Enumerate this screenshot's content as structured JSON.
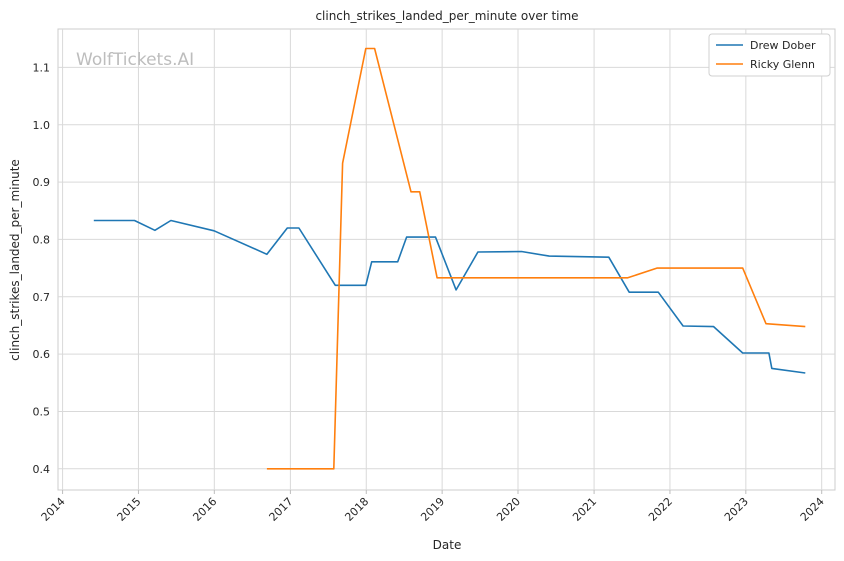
{
  "chart_data": {
    "type": "line",
    "title": "clinch_strikes_landed_per_minute over time",
    "xlabel": "Date",
    "ylabel": "clinch_strikes_landed_per_minute",
    "watermark": "WolfTickets.AI",
    "x_ticks": [
      "2014",
      "2015",
      "2016",
      "2017",
      "2018",
      "2019",
      "2020",
      "2021",
      "2022",
      "2023",
      "2024"
    ],
    "y_ticks": [
      "0.4",
      "0.5",
      "0.6",
      "0.7",
      "0.8",
      "0.9",
      "1.0",
      "1.1"
    ],
    "xlim": [
      "2013-12-10",
      "2024-03-05"
    ],
    "ylim": [
      0.363,
      1.167
    ],
    "grid": true,
    "legend_position": "top-right",
    "series": [
      {
        "name": "Drew Dober",
        "color": "#1f77b4",
        "points": [
          [
            "2014-05-31",
            0.833
          ],
          [
            "2014-12-13",
            0.833
          ],
          [
            "2015-03-21",
            0.816
          ],
          [
            "2015-06-06",
            0.833
          ],
          [
            "2015-12-31",
            0.815
          ],
          [
            "2016-09-10",
            0.774
          ],
          [
            "2016-12-17",
            0.82
          ],
          [
            "2017-02-11",
            0.82
          ],
          [
            "2017-08-05",
            0.72
          ],
          [
            "2017-12-30",
            0.72
          ],
          [
            "2018-01-27",
            0.761
          ],
          [
            "2018-06-01",
            0.761
          ],
          [
            "2018-07-14",
            0.804
          ],
          [
            "2018-11-30",
            0.804
          ],
          [
            "2019-03-09",
            0.712
          ],
          [
            "2019-06-22",
            0.778
          ],
          [
            "2020-01-18",
            0.779
          ],
          [
            "2020-05-30",
            0.771
          ],
          [
            "2021-03-13",
            0.769
          ],
          [
            "2021-06-19",
            0.708
          ],
          [
            "2021-11-06",
            0.708
          ],
          [
            "2022-03-05",
            0.649
          ],
          [
            "2022-07-30",
            0.648
          ],
          [
            "2022-12-17",
            0.602
          ],
          [
            "2023-04-22",
            0.602
          ],
          [
            "2023-05-06",
            0.575
          ],
          [
            "2023-10-14",
            0.567
          ]
        ]
      },
      {
        "name": "Ricky Glenn",
        "color": "#ff7f0e",
        "points": [
          [
            "2016-09-10",
            0.4
          ],
          [
            "2017-07-29",
            0.4
          ],
          [
            "2017-09-09",
            0.933
          ],
          [
            "2017-12-30",
            1.133
          ],
          [
            "2018-02-10",
            1.133
          ],
          [
            "2018-08-04",
            0.883
          ],
          [
            "2018-09-15",
            0.883
          ],
          [
            "2018-12-08",
            0.733
          ],
          [
            "2021-06-12",
            0.733
          ],
          [
            "2021-10-30",
            0.75
          ],
          [
            "2022-12-17",
            0.75
          ],
          [
            "2023-04-08",
            0.653
          ],
          [
            "2023-10-14",
            0.648
          ]
        ]
      }
    ]
  }
}
